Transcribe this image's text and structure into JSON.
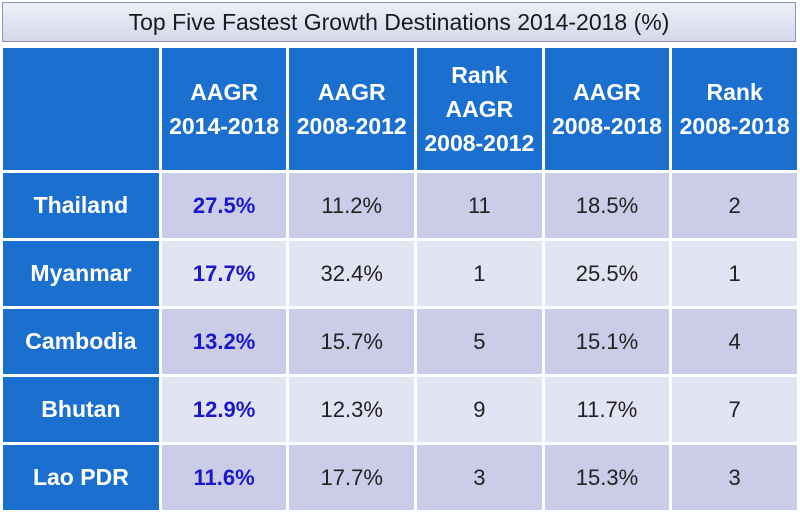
{
  "chart_data": {
    "type": "table",
    "title": "Top Five Fastest Growth Destinations 2014-2018 (%)",
    "columns": [
      {
        "line1": "AAGR",
        "line2": "2014-2018"
      },
      {
        "line1": "AAGR",
        "line2": "2008-2012"
      },
      {
        "line1": "Rank",
        "line2": "AAGR 2008-2012"
      },
      {
        "line1": "AAGR",
        "line2": "2008-2018"
      },
      {
        "line1": "Rank",
        "line2": "2008-2018"
      }
    ],
    "rows": [
      {
        "country": "Thailand",
        "values": [
          "27.5%",
          "11.2%",
          "11",
          "18.5%",
          "2"
        ]
      },
      {
        "country": "Myanmar",
        "values": [
          "17.7%",
          "32.4%",
          "1",
          "25.5%",
          "1"
        ]
      },
      {
        "country": "Cambodia",
        "values": [
          "13.2%",
          "15.7%",
          "5",
          "15.1%",
          "4"
        ]
      },
      {
        "country": "Bhutan",
        "values": [
          "12.9%",
          "12.3%",
          "9",
          "11.7%",
          "7"
        ]
      },
      {
        "country": "Lao PDR",
        "values": [
          "11.6%",
          "17.7%",
          "3",
          "15.3%",
          "3"
        ]
      }
    ]
  },
  "colors": {
    "header_bg": "#1b6fce",
    "header_text": "#ffffff",
    "row_odd_bg": "#cbcde8",
    "row_even_bg": "#e3e4f3",
    "accent_text": "#1a18c8"
  }
}
